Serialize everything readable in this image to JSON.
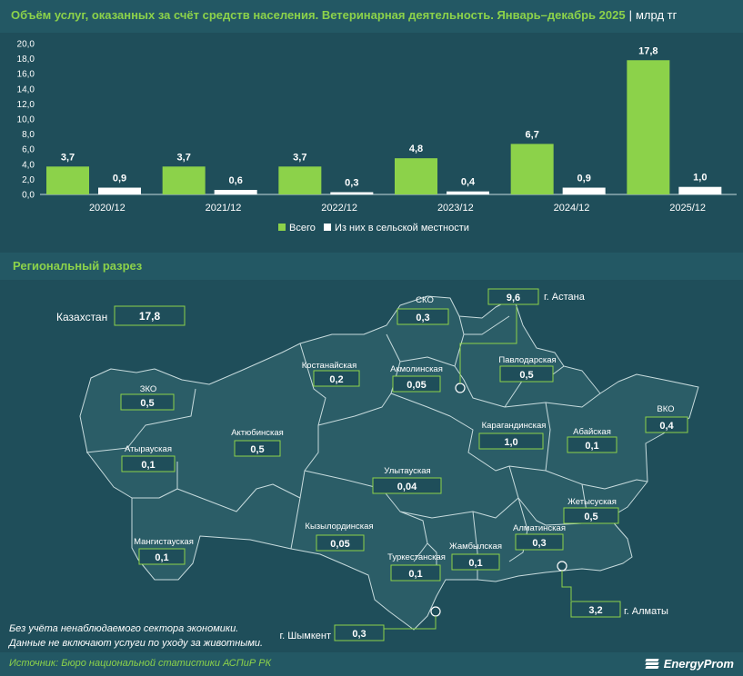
{
  "header": {
    "title": "Объём услуг, оказанных за счёт средств населения. Ветеринарная деятельность. Январь–декабрь 2025",
    "separator": "|",
    "unit": "млрд тг"
  },
  "chart_data": {
    "type": "bar",
    "categories": [
      "2020/12",
      "2021/12",
      "2022/12",
      "2023/12",
      "2024/12",
      "2025/12"
    ],
    "series": [
      {
        "name": "Всего",
        "values": [
          3.7,
          3.7,
          3.7,
          4.8,
          6.7,
          17.8
        ],
        "labels": [
          "3,7",
          "3,7",
          "3,7",
          "4,8",
          "6,7",
          "17,8"
        ],
        "color": "#8cd24a"
      },
      {
        "name": "Из них в сельской местности",
        "values": [
          0.9,
          0.6,
          0.3,
          0.4,
          0.9,
          1.0
        ],
        "labels": [
          "0,9",
          "0,6",
          "0,3",
          "0,4",
          "0,9",
          "1,0"
        ],
        "color": "#ffffff"
      }
    ],
    "ylim": [
      0,
      20
    ],
    "yticks": [
      0,
      2,
      4,
      6,
      8,
      10,
      12,
      14,
      16,
      18,
      20
    ],
    "ytick_labels": [
      "0,0",
      "2,0",
      "4,0",
      "6,0",
      "8,0",
      "10,0",
      "12,0",
      "14,0",
      "16,0",
      "18,0",
      "20,0"
    ],
    "grid": false,
    "legend_position": "bottom-center"
  },
  "regional": {
    "section_title": "Региональный разрез",
    "total": {
      "name": "Казахстан",
      "value": "17,8"
    },
    "regions": [
      {
        "id": "sko",
        "name": "СКО",
        "value": "0,3"
      },
      {
        "id": "astana",
        "name": "г. Астана",
        "value": "9,6"
      },
      {
        "id": "zko",
        "name": "ЗКО",
        "value": "0,5"
      },
      {
        "id": "kostanai",
        "name": "Костанайская",
        "value": "0,2"
      },
      {
        "id": "akmola",
        "name": "Акмолинская",
        "value": "0,05"
      },
      {
        "id": "pavlodar",
        "name": "Павлодарская",
        "value": "0,5"
      },
      {
        "id": "vko",
        "name": "ВКО",
        "value": "0,4"
      },
      {
        "id": "aktobe",
        "name": "Актюбинская",
        "value": "0,5"
      },
      {
        "id": "atyrau",
        "name": "Атырауская",
        "value": "0,1"
      },
      {
        "id": "karaganda",
        "name": "Карагандинская",
        "value": "1,0"
      },
      {
        "id": "abai",
        "name": "Абайская",
        "value": "0,1"
      },
      {
        "id": "ulytau",
        "name": "Улытауская",
        "value": "0,04"
      },
      {
        "id": "zhetysu",
        "name": "Жетысуская",
        "value": "0,5"
      },
      {
        "id": "mangystau",
        "name": "Мангистауская",
        "value": "0,1"
      },
      {
        "id": "kyzylorda",
        "name": "Кызылординская",
        "value": "0,05"
      },
      {
        "id": "almaty_reg",
        "name": "Алматинская",
        "value": "0,3"
      },
      {
        "id": "zhambyl",
        "name": "Жамбылская",
        "value": "0,1"
      },
      {
        "id": "turkestan",
        "name": "Туркестанская",
        "value": "0,1"
      },
      {
        "id": "almaty_city",
        "name": "г. Алматы",
        "value": "3,2"
      },
      {
        "id": "shymkent",
        "name": "г. Шымкент",
        "value": "0,3"
      }
    ]
  },
  "notes": [
    "Без учёта ненаблюдаемого сектора экономики.",
    "Данные не включают услуги по уходу за животными."
  ],
  "footer": {
    "source": "Источник: Бюро национальной статистики АСПиР РК",
    "logo": "EnergyProm"
  },
  "colors": {
    "background": "#1f4e5a",
    "panel": "#235864",
    "accent": "#8cd24a",
    "map_fill": "#2b5d67",
    "map_stroke": "#c7dbdd",
    "value_box": "#1f4e5a"
  }
}
